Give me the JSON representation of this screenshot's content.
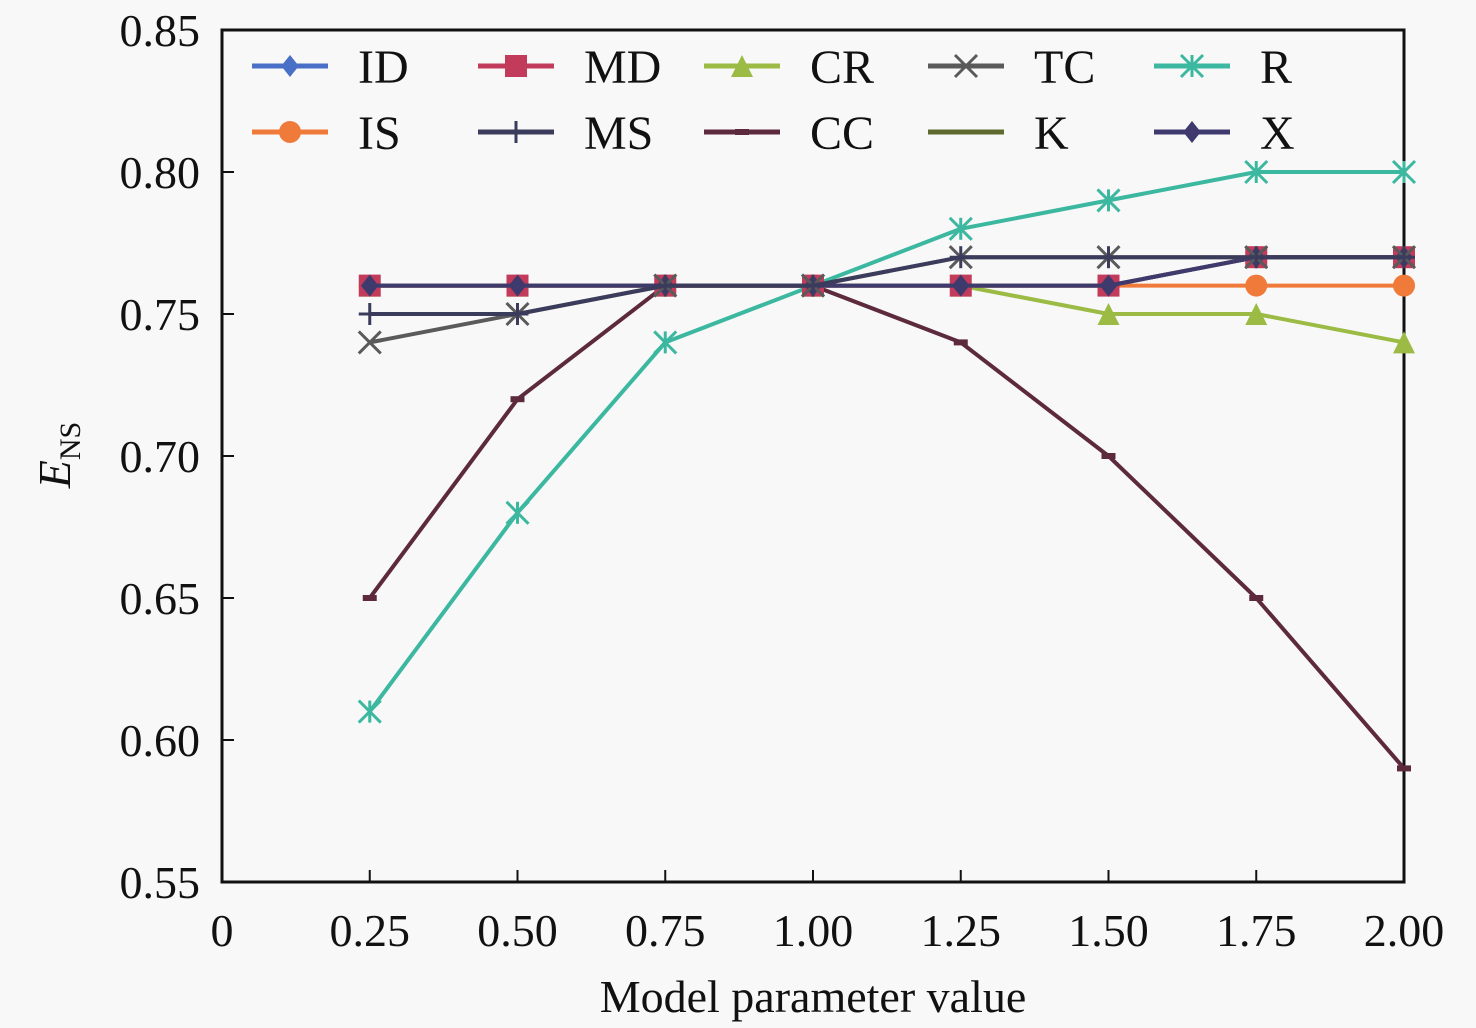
{
  "chart_data": {
    "type": "line",
    "title": "",
    "xlabel": "Model parameter value",
    "ylabel": "E",
    "ylabel_subscript": "NS",
    "xlim": [
      0,
      2.0
    ],
    "ylim": [
      0.55,
      0.85
    ],
    "grid": false,
    "legend_position": "top",
    "x_ticks": [
      0,
      0.25,
      0.5,
      0.75,
      1.0,
      1.25,
      1.5,
      1.75,
      2.0
    ],
    "x_tick_labels": [
      "0",
      "0.25",
      "0.50",
      "0.75",
      "1.00",
      "1.25",
      "1.50",
      "1.75",
      "2.00"
    ],
    "y_ticks": [
      0.55,
      0.6,
      0.65,
      0.7,
      0.75,
      0.8,
      0.85
    ],
    "y_tick_labels": [
      "0.55",
      "0.60",
      "0.65",
      "0.70",
      "0.75",
      "0.80",
      "0.85"
    ],
    "x": [
      0.25,
      0.5,
      0.75,
      1.0,
      1.25,
      1.5,
      1.75,
      2.0
    ],
    "series": [
      {
        "name": "ID",
        "color": "#4a6fc7",
        "marker": "diamond",
        "values": [
          0.76,
          0.76,
          0.76,
          0.76,
          0.76,
          0.76,
          0.77,
          0.77
        ]
      },
      {
        "name": "MD",
        "color": "#c23b5a",
        "marker": "square",
        "values": [
          0.76,
          0.76,
          0.76,
          0.76,
          0.76,
          0.76,
          0.77,
          0.77
        ]
      },
      {
        "name": "CR",
        "color": "#9bbb44",
        "marker": "triangle",
        "values": [
          0.76,
          0.76,
          0.76,
          0.76,
          0.76,
          0.75,
          0.75,
          0.74
        ]
      },
      {
        "name": "TC",
        "color": "#5a5a5a",
        "marker": "x",
        "values": [
          0.74,
          0.75,
          0.76,
          0.76,
          0.77,
          0.77,
          0.77,
          0.77
        ]
      },
      {
        "name": "R",
        "color": "#3cb8a0",
        "marker": "asterisk",
        "values": [
          0.61,
          0.68,
          0.74,
          0.76,
          0.78,
          0.79,
          0.8,
          0.8
        ]
      },
      {
        "name": "IS",
        "color": "#f07a3a",
        "marker": "circle",
        "values": [
          0.76,
          0.76,
          0.76,
          0.76,
          0.76,
          0.76,
          0.76,
          0.76
        ]
      },
      {
        "name": "MS",
        "color": "#3b3b5c",
        "marker": "plus",
        "values": [
          0.75,
          0.75,
          0.76,
          0.76,
          0.77,
          0.77,
          0.77,
          0.77
        ]
      },
      {
        "name": "CC",
        "color": "#5c2a3c",
        "marker": "dash",
        "values": [
          0.65,
          0.72,
          0.76,
          0.76,
          0.74,
          0.7,
          0.65,
          0.59
        ]
      },
      {
        "name": "K",
        "color": "#5e6a2e",
        "marker": "none",
        "values": [
          0.76,
          0.76,
          0.76,
          0.76,
          0.76,
          0.76,
          0.77,
          0.77
        ]
      },
      {
        "name": "X",
        "color": "#3f3a6e",
        "marker": "diamond",
        "values": [
          0.76,
          0.76,
          0.76,
          0.76,
          0.76,
          0.76,
          0.77,
          0.77
        ]
      }
    ]
  }
}
